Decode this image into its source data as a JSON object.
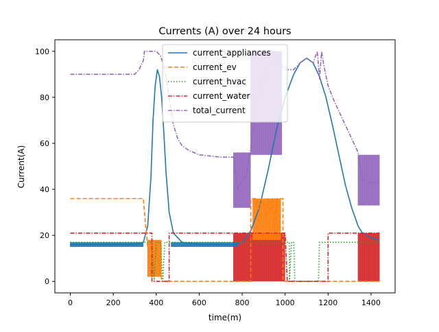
{
  "chart_data": {
    "type": "line",
    "title": "Currents (A) over 24 hours",
    "xlabel": "time(m)",
    "ylabel": "Current(A)",
    "xlim": [
      -72,
      1512
    ],
    "ylim": [
      -5,
      105
    ],
    "xticks": [
      "0",
      "200",
      "400",
      "600",
      "800",
      "1000",
      "1200",
      "1400"
    ],
    "yticks": [
      "0",
      "20",
      "40",
      "60",
      "80",
      "100"
    ],
    "legend_position": "upper-center",
    "series": [
      {
        "name": "current_appliances",
        "color": "#1f77b4",
        "style": "solid",
        "points": [
          [
            0,
            16
          ],
          [
            100,
            16
          ],
          [
            200,
            16
          ],
          [
            300,
            16
          ],
          [
            340,
            17
          ],
          [
            360,
            24
          ],
          [
            375,
            45
          ],
          [
            385,
            70
          ],
          [
            395,
            85
          ],
          [
            405,
            92
          ],
          [
            415,
            89
          ],
          [
            425,
            80
          ],
          [
            435,
            65
          ],
          [
            445,
            48
          ],
          [
            460,
            30
          ],
          [
            480,
            21
          ],
          [
            520,
            17
          ],
          [
            600,
            16
          ],
          [
            700,
            16
          ],
          [
            760,
            16
          ],
          [
            800,
            17
          ],
          [
            840,
            22
          ],
          [
            880,
            32
          ],
          [
            920,
            48
          ],
          [
            960,
            66
          ],
          [
            1000,
            80
          ],
          [
            1040,
            90
          ],
          [
            1070,
            95
          ],
          [
            1100,
            97
          ],
          [
            1130,
            95
          ],
          [
            1160,
            89
          ],
          [
            1190,
            80
          ],
          [
            1220,
            68
          ],
          [
            1250,
            55
          ],
          [
            1280,
            42
          ],
          [
            1310,
            32
          ],
          [
            1340,
            24
          ],
          [
            1360,
            21
          ],
          [
            1400,
            19
          ],
          [
            1435,
            18
          ]
        ]
      },
      {
        "name": "current_ev",
        "color": "#ff7f0e",
        "style": "dashed",
        "points": [
          [
            0,
            36
          ],
          [
            340,
            36
          ],
          [
            350,
            25
          ],
          [
            360,
            15
          ],
          [
            370,
            8
          ],
          [
            380,
            2
          ],
          [
            390,
            10
          ],
          [
            400,
            12
          ],
          [
            410,
            9
          ],
          [
            420,
            6
          ],
          [
            425,
            0
          ],
          [
            840,
            0
          ],
          [
            840,
            36
          ],
          [
            870,
            36
          ],
          [
            880,
            30
          ],
          [
            890,
            36
          ],
          [
            900,
            34
          ],
          [
            910,
            28
          ],
          [
            920,
            36
          ],
          [
            930,
            30
          ],
          [
            940,
            36
          ],
          [
            950,
            22
          ],
          [
            960,
            36
          ],
          [
            990,
            36
          ],
          [
            990,
            0
          ],
          [
            1440,
            0
          ]
        ]
      },
      {
        "name": "current_hvac",
        "color": "#2ca02c",
        "style": "dotted",
        "points": [
          [
            0,
            17
          ],
          [
            360,
            17
          ],
          [
            380,
            17
          ],
          [
            390,
            0
          ],
          [
            400,
            17
          ],
          [
            420,
            17
          ],
          [
            430,
            0
          ],
          [
            440,
            17
          ],
          [
            760,
            17
          ],
          [
            1020,
            17
          ],
          [
            1020,
            0
          ],
          [
            1030,
            17
          ],
          [
            1040,
            17
          ],
          [
            1045,
            0
          ],
          [
            1155,
            0
          ],
          [
            1160,
            17
          ],
          [
            1440,
            17
          ]
        ]
      },
      {
        "name": "current_water",
        "color": "#d62728",
        "style": "dashdot",
        "points": [
          [
            0,
            21
          ],
          [
            370,
            21
          ],
          [
            380,
            21
          ],
          [
            380,
            0
          ],
          [
            460,
            0
          ],
          [
            460,
            21
          ],
          [
            760,
            21
          ],
          [
            1000,
            21
          ],
          [
            1010,
            0
          ],
          [
            1200,
            0
          ],
          [
            1200,
            21
          ],
          [
            1440,
            21
          ]
        ]
      },
      {
        "name": "total_current",
        "color": "#9467bd",
        "style": "dashdot",
        "points": [
          [
            0,
            90
          ],
          [
            100,
            90
          ],
          [
            200,
            90
          ],
          [
            300,
            90
          ],
          [
            320,
            92
          ],
          [
            340,
            96
          ],
          [
            345,
            100
          ],
          [
            400,
            100
          ],
          [
            420,
            98
          ],
          [
            440,
            92
          ],
          [
            460,
            80
          ],
          [
            480,
            68
          ],
          [
            500,
            62
          ],
          [
            520,
            59
          ],
          [
            550,
            57
          ],
          [
            600,
            55
          ],
          [
            700,
            54
          ],
          [
            760,
            54
          ],
          [
            780,
            40
          ],
          [
            800,
            44
          ],
          [
            820,
            46
          ],
          [
            840,
            58
          ],
          [
            860,
            72
          ],
          [
            880,
            85
          ],
          [
            920,
            93
          ],
          [
            960,
            97
          ],
          [
            1000,
            92
          ],
          [
            1040,
            92
          ],
          [
            1070,
            95
          ],
          [
            1100,
            97
          ],
          [
            1130,
            95
          ],
          [
            1150,
            100
          ],
          [
            1160,
            88
          ],
          [
            1170,
            100
          ],
          [
            1180,
            94
          ],
          [
            1200,
            85
          ],
          [
            1230,
            78
          ],
          [
            1260,
            72
          ],
          [
            1290,
            66
          ],
          [
            1320,
            60
          ],
          [
            1340,
            56
          ],
          [
            1360,
            44
          ],
          [
            1400,
            43
          ],
          [
            1435,
            43
          ]
        ]
      }
    ],
    "bands": [
      {
        "series": "total_current",
        "x0": 760,
        "x1": 840,
        "y0": 32,
        "y1": 56
      },
      {
        "series": "total_current",
        "x0": 840,
        "x1": 985,
        "y0": 55,
        "y1": 100
      },
      {
        "series": "total_current",
        "x0": 1340,
        "x1": 1440,
        "y0": 33,
        "y1": 55
      },
      {
        "series": "current_water",
        "x0": 760,
        "x1": 1000,
        "y0": 0,
        "y1": 21
      },
      {
        "series": "current_water",
        "x0": 1340,
        "x1": 1440,
        "y0": 0,
        "y1": 21
      },
      {
        "series": "current_appliances",
        "x0": 0,
        "x1": 340,
        "y0": 15,
        "y1": 17
      },
      {
        "series": "current_appliances",
        "x0": 470,
        "x1": 780,
        "y0": 15,
        "y1": 17
      },
      {
        "series": "current_ev",
        "x0": 850,
        "x1": 980,
        "y0": 18,
        "y1": 36
      },
      {
        "series": "current_ev",
        "x0": 360,
        "x1": 425,
        "y0": 2,
        "y1": 18
      }
    ]
  }
}
